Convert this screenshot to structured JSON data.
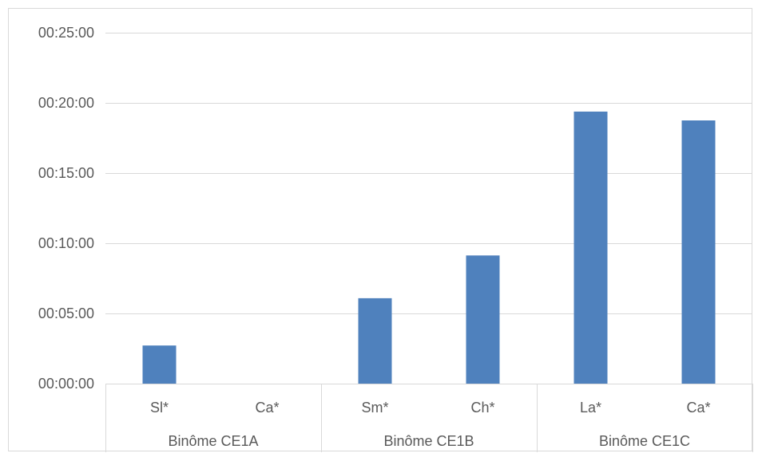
{
  "chart_data": {
    "type": "bar",
    "title": "",
    "xlabel": "",
    "ylabel": "",
    "groups": [
      {
        "label": "Binôme CE1A",
        "categories": [
          "Sl*",
          "Ca*"
        ]
      },
      {
        "label": "Binôme CE1B",
        "categories": [
          "Sm*",
          "Ch*"
        ]
      },
      {
        "label": "Binôme CE1C",
        "categories": [
          "La*",
          "Ca*"
        ]
      }
    ],
    "categories": [
      "Sl*",
      "Ca*",
      "Sm*",
      "Ch*",
      "La*",
      "Ca*"
    ],
    "values_seconds": [
      163,
      0,
      365,
      548,
      1163,
      1125
    ],
    "ylim_seconds": [
      0,
      1500
    ],
    "y_tick_seconds": [
      0,
      300,
      600,
      900,
      1200,
      1500
    ],
    "y_tick_labels": [
      "00:00:00",
      "00:05:00",
      "00:10:00",
      "00:15:00",
      "00:20:00",
      "00:25:00"
    ],
    "grid": true,
    "legend": "none",
    "bar_color": "#4f81bd",
    "grid_color": "#d9d9d9",
    "text_color": "#595959"
  }
}
